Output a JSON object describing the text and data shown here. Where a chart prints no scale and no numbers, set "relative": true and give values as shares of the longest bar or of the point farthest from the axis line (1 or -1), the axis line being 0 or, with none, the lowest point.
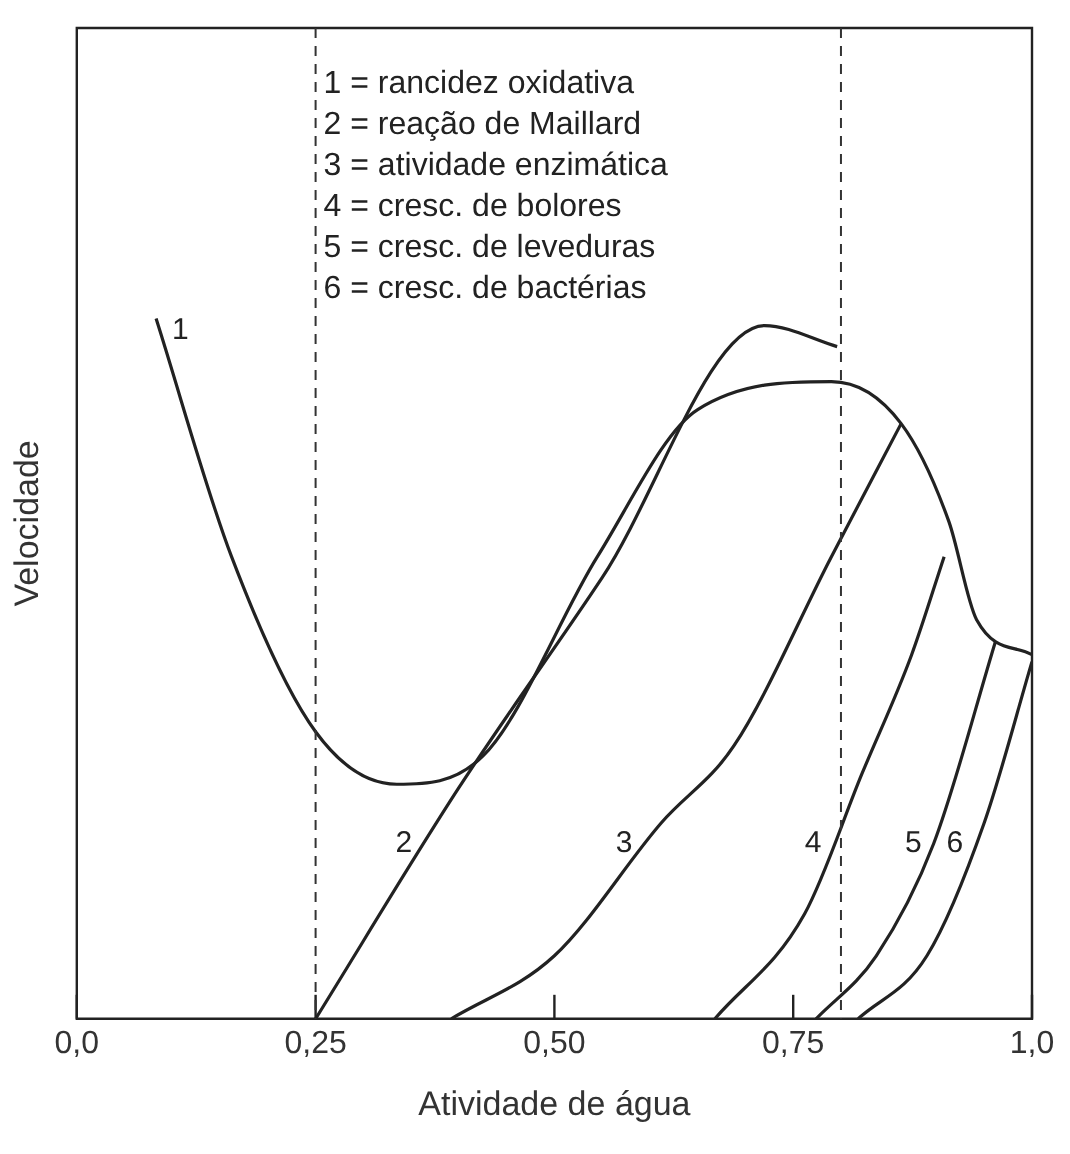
{
  "chart_data": {
    "type": "line",
    "relative": true,
    "xlabel": "Atividade de água",
    "ylabel": "Velocidade",
    "xlim": [
      0,
      1
    ],
    "xticks": [
      {
        "value": 0,
        "label": "0,0"
      },
      {
        "value": 0.25,
        "label": "0,25"
      },
      {
        "value": 0.5,
        "label": "0,50"
      },
      {
        "value": 0.75,
        "label": "0,75"
      },
      {
        "value": 1,
        "label": "1,0"
      }
    ],
    "series": [
      {
        "name": "1",
        "color": "#222222",
        "x": [
          0.083,
          0.162,
          0.25,
          0.335,
          0.425,
          0.545,
          0.65,
          0.79,
          0.863,
          0.913,
          0.942,
          1.0
        ],
        "values": [
          1.0,
          0.66,
          0.41,
          0.335,
          0.375,
          0.66,
          0.87,
          0.91,
          0.85,
          0.71,
          0.57,
          0.52
        ]
      },
      {
        "name": "2",
        "color": "#222222",
        "x": [
          0.25,
          0.4,
          0.55,
          0.72,
          0.796
        ],
        "values": [
          0,
          0.33,
          0.63,
          0.99,
          0.96
        ]
      },
      {
        "name": "3",
        "color": "#222222",
        "x": [
          0.392,
          0.5,
          0.612,
          0.688,
          0.79,
          0.863
        ],
        "values": [
          0,
          0.09,
          0.28,
          0.39,
          0.66,
          0.85
        ]
      },
      {
        "name": "4",
        "color": "#222222",
        "x": [
          0.668,
          0.762,
          0.822,
          0.874,
          0.908
        ],
        "values": [
          0,
          0.15,
          0.35,
          0.52,
          0.66
        ]
      },
      {
        "name": "5",
        "color": "#222222",
        "x": [
          0.774,
          0.837,
          0.897,
          0.962
        ],
        "values": [
          0,
          0.09,
          0.25,
          0.54
        ]
      },
      {
        "name": "6",
        "color": "#222222",
        "x": [
          0.818,
          0.89,
          0.95,
          1.0
        ],
        "values": [
          0,
          0.09,
          0.28,
          0.51
        ]
      }
    ],
    "ref_lines": [
      {
        "axis": "x",
        "value": 0.25,
        "line_style": "dashed"
      },
      {
        "axis": "x",
        "value": 0.8,
        "line_style": "dashed"
      }
    ],
    "annotations": [
      "1 = rancidez oxidativa",
      "2 = reação de Maillard",
      "3 = atividade enzimática",
      "4 = cresc. de bolores",
      "5 = cresc. de leveduras",
      "6 = cresc. de bactérias"
    ],
    "grid": false,
    "legend": false,
    "marker": "none",
    "line_style": "solid"
  }
}
